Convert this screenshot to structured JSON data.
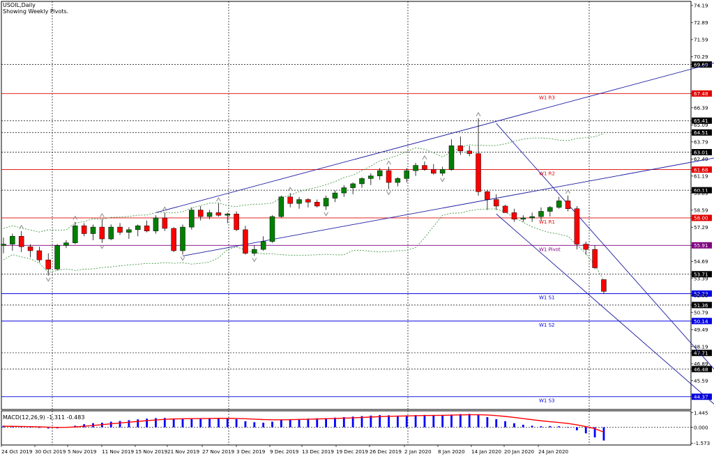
{
  "chart": {
    "symbol_label": "USOIL,Daily",
    "info_label": "Showing Weekly Pivots."
  },
  "macd": {
    "label": "MACD(12,26,9) -1.311 -0.483",
    "ticks": [
      "1.445",
      "0.000",
      "-1.573"
    ]
  },
  "chart_data": {
    "type": "candlestick",
    "title": "USOIL,Daily",
    "subtitle": "Showing Weekly Pivots.",
    "price_range": [
      43.4,
      74.5
    ],
    "price_ticks": [
      "74.19",
      "72.89",
      "71.59",
      "70.29",
      "69.69",
      "67.48",
      "66.39",
      "65.41",
      "65.09",
      "64.51",
      "63.79",
      "63.01",
      "62.49",
      "61.68",
      "61.19",
      "60.11",
      "59.89",
      "58.59",
      "58.00",
      "57.29",
      "55.91",
      "54.69",
      "53.71",
      "53.39",
      "52.23",
      "52.09",
      "51.36",
      "50.79",
      "50.14",
      "49.49",
      "48.19",
      "47.71",
      "46.89",
      "46.48",
      "45.59",
      "44.37"
    ],
    "price_ticks_highlighted": [
      "69.69",
      "67.48",
      "65.41",
      "64.51",
      "63.01",
      "61.68",
      "60.11",
      "58.00",
      "55.91",
      "53.71",
      "52.23",
      "51.36",
      "50.14",
      "47.71",
      "46.48",
      "44.37"
    ],
    "date_labels": [
      "24 Oct 2019",
      "30 Oct 2019",
      "5 Nov 2019",
      "11 Nov 2019",
      "15 Nov 2019",
      "21 Nov 2019",
      "27 Nov 2019",
      "3 Dec 2019",
      "9 Dec 2019",
      "13 Dec 2019",
      "19 Dec 2019",
      "26 Dec 2019",
      "2 Jan 2020",
      "8 Jan 2020",
      "14 Jan 2020",
      "20 Jan 2020",
      "24 Jan 2020"
    ],
    "pivots": [
      {
        "label": "W1 R3",
        "value": 67.48,
        "color": "#e00000"
      },
      {
        "label": "W1 R2",
        "value": 61.68,
        "color": "#e00000"
      },
      {
        "label": "W1 R1",
        "value": 58.0,
        "color": "#e00000"
      },
      {
        "label": "W1 Pivot",
        "value": 55.91,
        "color": "#800080"
      },
      {
        "label": "W1 S1",
        "value": 52.23,
        "color": "#0000e0"
      },
      {
        "label": "W1 S2",
        "value": 50.14,
        "color": "#0000e0"
      },
      {
        "label": "W1 S3",
        "value": 44.37,
        "color": "#0000e0"
      }
    ],
    "ohlc": [
      [
        55.9,
        56.5,
        55.3,
        56.0
      ],
      [
        56.0,
        56.8,
        55.5,
        56.6
      ],
      [
        56.6,
        57.0,
        55.4,
        55.8
      ],
      [
        55.8,
        56.0,
        55.0,
        55.5
      ],
      [
        55.5,
        55.8,
        54.6,
        54.8
      ],
      [
        54.8,
        55.3,
        53.6,
        54.1
      ],
      [
        54.1,
        56.0,
        54.0,
        55.9
      ],
      [
        55.9,
        56.3,
        55.7,
        56.1
      ],
      [
        56.1,
        57.7,
        56.0,
        57.4
      ],
      [
        57.4,
        57.6,
        56.6,
        56.8
      ],
      [
        56.8,
        57.5,
        56.3,
        57.3
      ],
      [
        57.3,
        57.9,
        56.1,
        56.4
      ],
      [
        56.4,
        57.5,
        56.3,
        57.3
      ],
      [
        57.3,
        57.6,
        56.7,
        56.9
      ],
      [
        56.9,
        57.3,
        56.4,
        57.1
      ],
      [
        57.1,
        57.5,
        56.6,
        57.4
      ],
      [
        57.4,
        57.8,
        56.9,
        57.0
      ],
      [
        57.0,
        58.2,
        56.8,
        58.0
      ],
      [
        58.0,
        58.4,
        57.0,
        57.2
      ],
      [
        57.2,
        57.3,
        55.4,
        55.5
      ],
      [
        55.5,
        57.5,
        55.2,
        57.3
      ],
      [
        57.3,
        58.8,
        57.1,
        58.6
      ],
      [
        58.6,
        58.9,
        57.8,
        58.1
      ],
      [
        58.1,
        58.6,
        57.9,
        58.4
      ],
      [
        58.4,
        59.1,
        58.1,
        58.2
      ],
      [
        58.2,
        58.4,
        57.6,
        58.3
      ],
      [
        58.3,
        58.5,
        57.0,
        57.1
      ],
      [
        57.1,
        57.4,
        55.2,
        55.3
      ],
      [
        55.3,
        55.9,
        55.1,
        55.6
      ],
      [
        55.6,
        56.6,
        55.5,
        56.2
      ],
      [
        56.2,
        58.2,
        56.1,
        58.1
      ],
      [
        58.1,
        59.7,
        58.0,
        59.6
      ],
      [
        59.6,
        59.9,
        58.8,
        59.1
      ],
      [
        59.1,
        59.6,
        58.7,
        59.4
      ],
      [
        59.4,
        59.5,
        58.8,
        59.2
      ],
      [
        59.2,
        59.4,
        58.8,
        58.9
      ],
      [
        58.9,
        59.7,
        58.6,
        59.5
      ],
      [
        59.5,
        60.1,
        59.2,
        59.9
      ],
      [
        59.9,
        60.5,
        59.6,
        60.3
      ],
      [
        60.3,
        60.7,
        59.8,
        60.6
      ],
      [
        60.6,
        61.1,
        60.3,
        61.0
      ],
      [
        61.0,
        61.4,
        60.5,
        61.2
      ],
      [
        61.2,
        61.8,
        60.9,
        61.6
      ],
      [
        61.6,
        61.9,
        60.2,
        60.7
      ],
      [
        60.7,
        61.1,
        60.4,
        61.0
      ],
      [
        61.0,
        61.8,
        60.7,
        61.6
      ],
      [
        61.6,
        62.2,
        61.2,
        62.0
      ],
      [
        62.0,
        62.3,
        61.6,
        61.7
      ],
      [
        61.7,
        62.1,
        61.3,
        61.4
      ],
      [
        61.4,
        61.9,
        61.2,
        61.7
      ],
      [
        61.7,
        64.0,
        61.6,
        63.5
      ],
      [
        63.5,
        64.2,
        62.8,
        63.1
      ],
      [
        63.1,
        63.5,
        62.7,
        62.9
      ],
      [
        62.9,
        65.6,
        59.7,
        60.0
      ],
      [
        60.0,
        60.1,
        58.6,
        59.4
      ],
      [
        59.4,
        59.8,
        58.6,
        58.9
      ],
      [
        58.9,
        59.0,
        58.4,
        58.4
      ],
      [
        58.4,
        58.7,
        57.7,
        57.9
      ],
      [
        57.9,
        58.2,
        57.7,
        58.0
      ],
      [
        58.0,
        58.4,
        57.7,
        58.1
      ],
      [
        58.1,
        58.8,
        57.8,
        58.5
      ],
      [
        58.5,
        58.9,
        58.1,
        58.8
      ],
      [
        58.8,
        59.6,
        58.7,
        59.3
      ],
      [
        59.3,
        59.7,
        58.5,
        58.7
      ],
      [
        58.7,
        58.9,
        55.6,
        56.0
      ],
      [
        56.0,
        56.2,
        55.2,
        55.6
      ],
      [
        55.6,
        55.9,
        54.1,
        54.2
      ],
      [
        53.3,
        53.3,
        52.2,
        52.4
      ]
    ],
    "resistance_channel": [
      {
        "from": [
          17,
          58.4
        ],
        "to": [
          82,
          70.3
        ]
      },
      {
        "from": [
          20,
          55.1
        ],
        "to": [
          82,
          62.9
        ]
      }
    ],
    "down_channel": [
      {
        "from": [
          55,
          65.2
        ],
        "to": [
          82,
          44.4
        ]
      },
      {
        "from": [
          55,
          58.3
        ],
        "to": [
          80,
          43.4
        ]
      }
    ],
    "macd_histogram": [
      0.15,
      0.1,
      0.05,
      0.02,
      -0.05,
      -0.12,
      -0.1,
      0.02,
      0.15,
      0.3,
      0.4,
      0.45,
      0.55,
      0.62,
      0.7,
      0.78,
      0.85,
      0.9,
      0.92,
      0.85,
      0.8,
      0.82,
      0.9,
      0.88,
      0.85,
      0.82,
      0.8,
      0.6,
      0.5,
      0.45,
      0.55,
      0.7,
      0.75,
      0.8,
      0.85,
      0.88,
      0.9,
      0.95,
      1.0,
      1.05,
      1.1,
      1.15,
      1.2,
      1.18,
      1.15,
      1.18,
      1.2,
      1.22,
      1.2,
      1.18,
      1.25,
      1.3,
      1.32,
      1.2,
      1.0,
      0.8,
      0.6,
      0.4,
      0.25,
      0.15,
      0.1,
      0.12,
      0.1,
      0.02,
      -0.3,
      -0.6,
      -1.0,
      -1.31
    ],
    "macd_signal": [
      0.1,
      0.09,
      0.08,
      0.06,
      0.04,
      0.01,
      -0.02,
      -0.01,
      0.03,
      0.1,
      0.18,
      0.26,
      0.34,
      0.42,
      0.5,
      0.58,
      0.65,
      0.72,
      0.78,
      0.82,
      0.84,
      0.85,
      0.86,
      0.87,
      0.88,
      0.88,
      0.87,
      0.84,
      0.8,
      0.76,
      0.74,
      0.74,
      0.75,
      0.77,
      0.79,
      0.82,
      0.84,
      0.87,
      0.9,
      0.93,
      0.97,
      1.01,
      1.05,
      1.08,
      1.1,
      1.12,
      1.14,
      1.16,
      1.17,
      1.18,
      1.2,
      1.22,
      1.24,
      1.24,
      1.21,
      1.15,
      1.07,
      0.97,
      0.86,
      0.75,
      0.64,
      0.55,
      0.47,
      0.38,
      0.24,
      0.07,
      -0.14,
      -0.48
    ]
  }
}
